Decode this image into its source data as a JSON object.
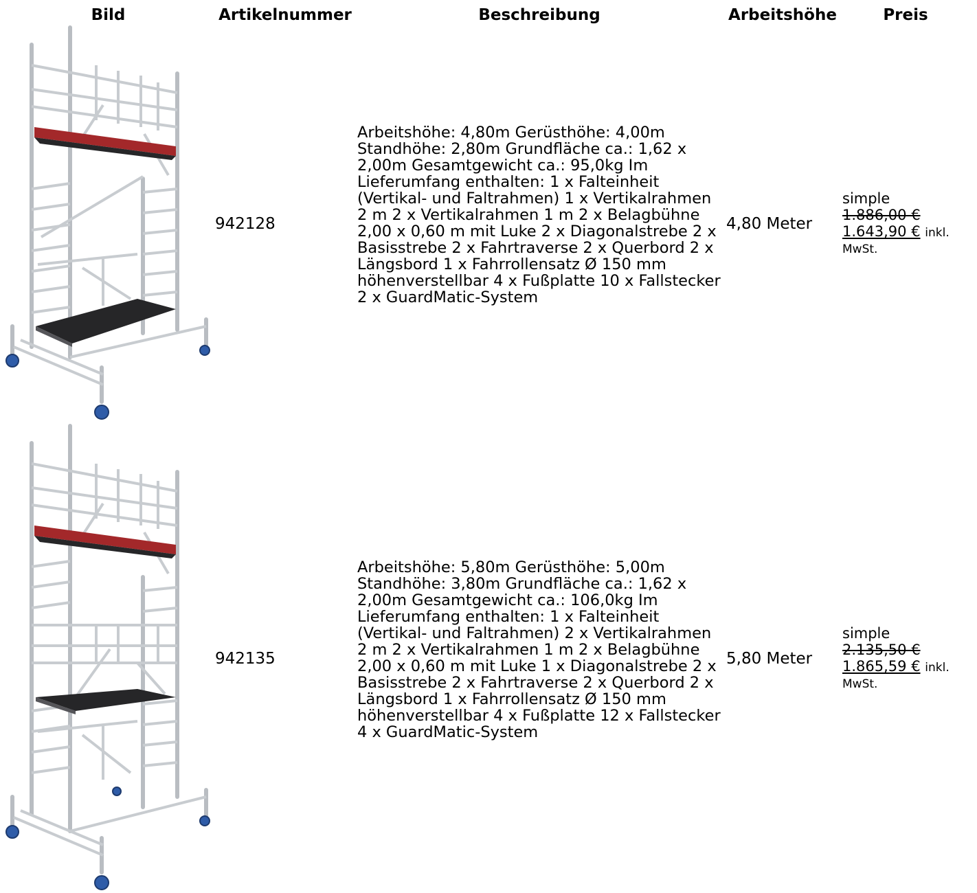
{
  "table": {
    "headers": {
      "bild": "Bild",
      "artikelnummer": "Artikelnummer",
      "beschreibung": "Beschreibung",
      "arbeitshoehe": "Arbeitshöhe",
      "preis": "Preis"
    },
    "rows": [
      {
        "image_icon": "scaffold-tower-image",
        "artikelnummer": "942128",
        "beschreibung": "Arbeitshöhe: 4,80m Gerüsthöhe: 4,00m Standhöhe: 2,80m Grundfläche ca.: 1,62 x 2,00m Gesamtgewicht ca.: 95,0kg Im Lieferumfang enthalten: 1 x Falteinheit (Vertikal- und Faltrahmen) 1 x Vertikalrahmen 2 m 2 x Vertikalrahmen 1 m 2 x Belagbühne 2,00 x 0,60 m mit Luke 2 x Diagonalstrebe 2 x Basisstrebe 2 x Fahrtraverse 2 x Querbord 2 x Längsbord 1 x Fahrrollensatz Ø 150 mm höhenverstellbar 4 x Fußplatte 10 x Fallstecker 2 x GuardMatic-System",
        "arbeitshoehe": "4,80 Meter",
        "price_type": "simple",
        "old_price": "1.886,00 €",
        "new_price": "1.643,90 €",
        "tax_note_1": "inkl.",
        "tax_note_2": "MwSt."
      },
      {
        "image_icon": "scaffold-tower-image",
        "artikelnummer": "942135",
        "beschreibung": "Arbeitshöhe: 5,80m Gerüsthöhe: 5,00m Standhöhe: 3,80m Grundfläche ca.: 1,62 x 2,00m Gesamtgewicht ca.: 106,0kg Im Lieferumfang enthalten: 1 x Falteinheit (Vertikal- und Faltrahmen) 2 x Vertikalrahmen 2 m 2 x Vertikalrahmen 1 m 2 x Belagbühne 2,00 x 0,60 m mit Luke 1 x Diagonalstrebe 2 x Basisstrebe 2 x Fahrtraverse 2 x Querbord 2 x Längsbord 1 x Fahrrollensatz Ø 150 mm höhenverstellbar 4 x Fußplatte 12 x Fallstecker 4 x GuardMatic-System",
        "arbeitshoehe": "5,80 Meter",
        "price_type": "simple",
        "old_price": "2.135,50 €",
        "new_price": "1.865,59 €",
        "tax_note_1": "inkl.",
        "tax_note_2": "MwSt."
      }
    ]
  },
  "colors": {
    "aluminium": "#b9bdc2",
    "platform_red": "#a3282a",
    "platform_dark": "#262628",
    "wheel_blue": "#2f5ca8"
  }
}
